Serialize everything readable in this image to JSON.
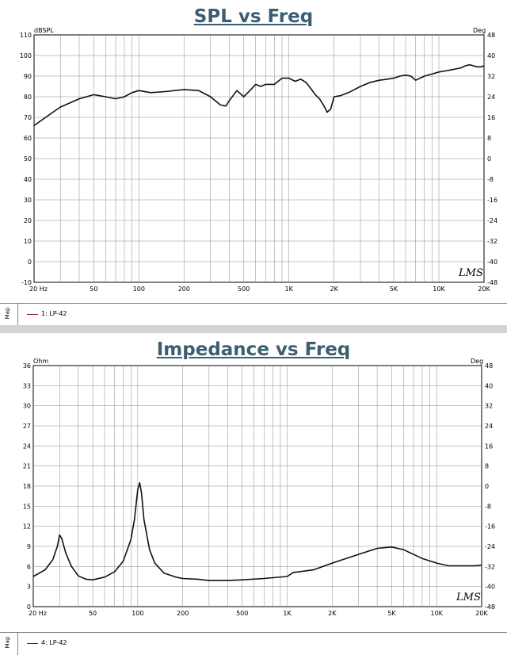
{
  "chart_data": [
    {
      "type": "line",
      "title": "SPL vs Freq",
      "ylabel": "dBSPL",
      "y2label": "Deg",
      "xscale": "log",
      "xlim": [
        20,
        20000
      ],
      "ylim": [
        -10,
        110
      ],
      "y2lim": [
        -48,
        48
      ],
      "x_ticks": [
        20,
        50,
        100,
        200,
        500,
        1000,
        2000,
        5000,
        10000,
        20000
      ],
      "x_tick_labels": [
        "20 Hz",
        "50",
        "100",
        "200",
        "500",
        "1K",
        "2K",
        "5K",
        "10K",
        "20K"
      ],
      "y_ticks": [
        110,
        100,
        90,
        80,
        70,
        60,
        50,
        40,
        30,
        20,
        10,
        0,
        -10
      ],
      "y2_ticks": [
        48,
        40,
        32,
        24,
        16,
        8,
        0,
        -8,
        -16,
        -24,
        -32,
        -40,
        -48
      ],
      "grid": true,
      "watermark": "LMS",
      "legend": {
        "label": "1: LP-42",
        "placement": "bottom"
      },
      "series": [
        {
          "name": "1: LP-42",
          "x": [
            20,
            25,
            30,
            40,
            50,
            60,
            70,
            80,
            90,
            100,
            120,
            150,
            200,
            250,
            300,
            350,
            380,
            400,
            450,
            500,
            550,
            600,
            650,
            700,
            800,
            900,
            1000,
            1100,
            1200,
            1300,
            1400,
            1500,
            1600,
            1700,
            1800,
            1900,
            2000,
            2200,
            2500,
            3000,
            3500,
            4000,
            4500,
            5000,
            5500,
            6000,
            6500,
            7000,
            8000,
            9000,
            10000,
            11000,
            12000,
            13000,
            14000,
            15000,
            16000,
            17000,
            18000,
            19000,
            20000
          ],
          "y": [
            66,
            71,
            75,
            79,
            81,
            80,
            79,
            80,
            82,
            83,
            82,
            82.5,
            83.5,
            83,
            80,
            76,
            75.5,
            78,
            83,
            80,
            83,
            86,
            85,
            86,
            86,
            89,
            89,
            87.5,
            88.5,
            87,
            84,
            81,
            79,
            76,
            72.5,
            74,
            80,
            80.5,
            82,
            85,
            87,
            88,
            88.5,
            89,
            90,
            90.5,
            90,
            88,
            90,
            91,
            92,
            92.5,
            93,
            93.5,
            94,
            95,
            95.5,
            95,
            94.5,
            94.5,
            95
          ]
        }
      ]
    },
    {
      "type": "line",
      "title": "Impedance vs Freq",
      "ylabel": "Ohm",
      "y2label": "Deg",
      "xscale": "log",
      "xlim": [
        20,
        20000
      ],
      "ylim": [
        0,
        36
      ],
      "y2lim": [
        -48,
        48
      ],
      "x_ticks": [
        20,
        50,
        100,
        200,
        500,
        1000,
        2000,
        5000,
        10000,
        20000
      ],
      "x_tick_labels": [
        "20 Hz",
        "50",
        "100",
        "200",
        "500",
        "1K",
        "2K",
        "5K",
        "10K",
        "20K"
      ],
      "y_ticks": [
        36,
        33,
        30,
        27,
        24,
        21,
        18,
        15,
        12,
        9,
        6,
        3,
        0
      ],
      "y2_ticks": [
        48,
        40,
        32,
        24,
        16,
        8,
        0,
        -8,
        -16,
        -24,
        -32,
        -40,
        -48
      ],
      "grid": true,
      "watermark": "LMS",
      "legend": {
        "label": "4: LP-42",
        "placement": "bottom"
      },
      "series": [
        {
          "name": "4: LP-42",
          "x": [
            20,
            24,
            27,
            29,
            30,
            31,
            33,
            36,
            40,
            45,
            50,
            60,
            70,
            80,
            90,
            95,
            100,
            103,
            106,
            110,
            120,
            130,
            150,
            180,
            200,
            250,
            300,
            400,
            500,
            700,
            1000,
            1100,
            1500,
            2000,
            3000,
            4000,
            5000,
            6000,
            8000,
            10000,
            12000,
            15000,
            18000,
            20000
          ],
          "y": [
            4.5,
            5.5,
            7,
            9,
            10.7,
            10.2,
            8,
            6,
            4.6,
            4.1,
            4,
            4.4,
            5.2,
            6.8,
            10,
            13,
            17.5,
            18.5,
            17,
            13,
            8.5,
            6.5,
            5,
            4.4,
            4.2,
            4.1,
            3.9,
            3.9,
            4,
            4.2,
            4.5,
            5.1,
            5.5,
            6.5,
            7.8,
            8.7,
            8.9,
            8.5,
            7.2,
            6.5,
            6.1,
            6.1,
            6.1,
            6.2
          ]
        }
      ]
    }
  ],
  "legend_tab": "Map"
}
